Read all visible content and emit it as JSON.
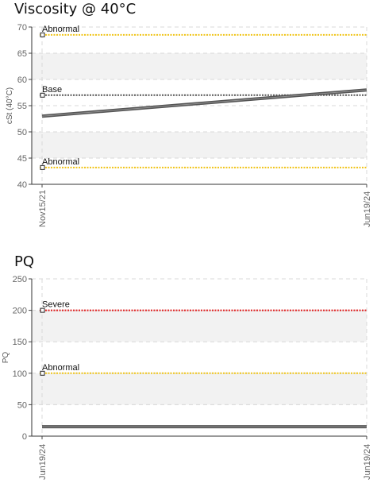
{
  "chart_data": [
    {
      "type": "line",
      "title": "Viscosity @ 40°C",
      "ylabel": "cSt (40°C)",
      "ylim": [
        40,
        70
      ],
      "y_ticks": [
        40,
        45,
        50,
        55,
        60,
        65,
        70
      ],
      "x_ticks": [
        "Nov15/21",
        "Jun19/24"
      ],
      "grid": true,
      "bands": [
        {
          "from": 45,
          "to": 50,
          "color": "#f2f2f2"
        },
        {
          "from": 60,
          "to": 65,
          "color": "#f2f2f2"
        }
      ],
      "reference_lines": [
        {
          "label": "Abnormal",
          "value": 68.5,
          "color": "#f0c419"
        },
        {
          "label": "Base",
          "value": 57,
          "color": "#555555"
        },
        {
          "label": "Abnormal",
          "value": 43.2,
          "color": "#f0c419"
        }
      ],
      "series": [
        {
          "x": [
            "Nov15/21",
            "Jun19/24"
          ],
          "values": [
            53,
            58
          ],
          "color": "#555555"
        }
      ]
    },
    {
      "type": "line",
      "title": "PQ",
      "ylabel": "PQ",
      "ylim": [
        0,
        250
      ],
      "y_ticks": [
        0,
        50,
        100,
        150,
        200,
        250
      ],
      "x_ticks": [
        "Jun19/24",
        "Jun19/24"
      ],
      "grid": true,
      "bands": [
        {
          "from": 50,
          "to": 100,
          "color": "#f2f2f2"
        },
        {
          "from": 150,
          "to": 200,
          "color": "#f2f2f2"
        }
      ],
      "reference_lines": [
        {
          "label": "Severe",
          "value": 200,
          "color": "#e02020"
        },
        {
          "label": "Abnormal",
          "value": 100,
          "color": "#f0c419"
        }
      ],
      "series": [
        {
          "x": [
            "Jun19/24",
            "Jun19/24"
          ],
          "values": [
            15,
            15
          ],
          "color": "#555555"
        }
      ]
    }
  ]
}
